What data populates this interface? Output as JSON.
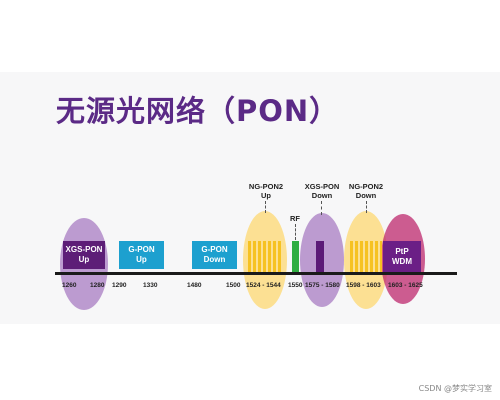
{
  "title": "无源光网络（PON）",
  "bands": {
    "xgs_pon_up": [
      "XGS-PON",
      "Up"
    ],
    "g_pon_up": [
      "G-PON",
      "Up"
    ],
    "g_pon_down": [
      "G-PON",
      "Down"
    ],
    "ptp_wdm": [
      "PtP",
      "WDM"
    ]
  },
  "top_labels": {
    "ng_pon2_up": [
      "NG-PON2",
      "Up"
    ],
    "rf": "RF",
    "xgs_pon_down": [
      "XGS-PON",
      "Down"
    ],
    "ng_pon2_down": [
      "NG-PON2",
      "Down"
    ]
  },
  "ticks": [
    "1260",
    "1280",
    "1290",
    "1330",
    "1480",
    "1500",
    "1524 - 1544",
    "1550",
    "1575 - 1580",
    "1598 - 1603",
    "1603 - 1625"
  ],
  "watermark": "CSDN @梦实学习室",
  "colors": {
    "title": "#5b2a86",
    "purple_box": "#5d1e77",
    "cyan_box": "#1da0cf",
    "yellow": "#f6c222",
    "rf_green": "#2fae42",
    "pink": "#be286e"
  }
}
